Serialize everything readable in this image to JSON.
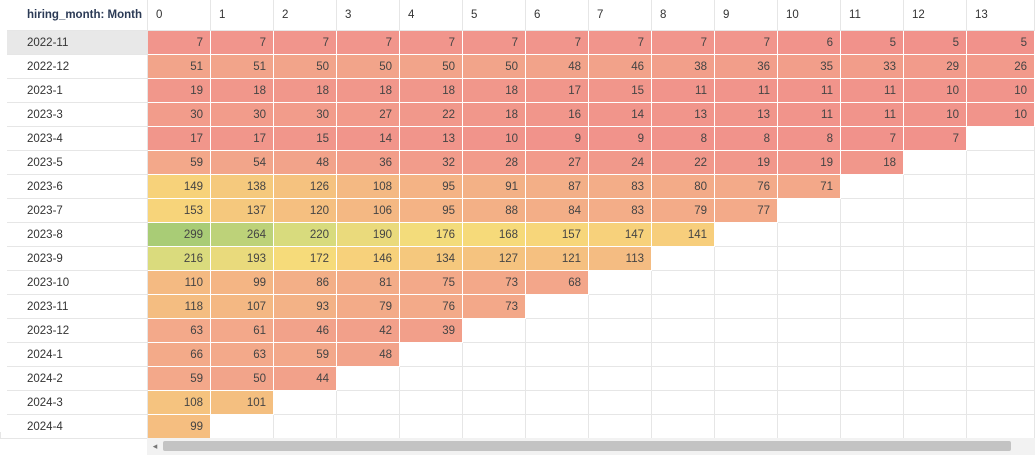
{
  "grid": {
    "corner_label": "hiring_month: Month",
    "columns": [
      "0",
      "1",
      "2",
      "3",
      "4",
      "5",
      "6",
      "7",
      "8",
      "9",
      "10",
      "11",
      "12",
      "13"
    ],
    "selected_row": 0,
    "rows": [
      {
        "label": "2022-11",
        "values": [
          7,
          7,
          7,
          7,
          7,
          7,
          7,
          7,
          7,
          7,
          6,
          5,
          5,
          5
        ],
        "colors": [
          "#f1958c",
          "#f1958c",
          "#f1958c",
          "#f1958c",
          "#f1958c",
          "#f1958c",
          "#f1958c",
          "#f1958c",
          "#f1958c",
          "#f1958c",
          "#f1938b",
          "#f1928b",
          "#f1928b",
          "#f1928b"
        ]
      },
      {
        "label": "2022-12",
        "values": [
          51,
          51,
          50,
          50,
          50,
          50,
          48,
          46,
          38,
          36,
          35,
          33,
          29,
          26
        ],
        "colors": [
          "#f2a48a",
          "#f2a48a",
          "#f2a48a",
          "#f2a48a",
          "#f2a48a",
          "#f2a48a",
          "#f2a38a",
          "#f2a28a",
          "#f29f8a",
          "#f29e8a",
          "#f29e8a",
          "#f29d8a",
          "#f29b8b",
          "#f29a8b"
        ]
      },
      {
        "label": "2023-1",
        "values": [
          19,
          18,
          18,
          18,
          18,
          18,
          17,
          15,
          11,
          11,
          11,
          11,
          10,
          10
        ],
        "colors": [
          "#f1978b",
          "#f1978b",
          "#f1978b",
          "#f1978b",
          "#f1978b",
          "#f1978b",
          "#f1968b",
          "#f1968b",
          "#f1948b",
          "#f1948b",
          "#f1948b",
          "#f1948b",
          "#f1948b",
          "#f1948b"
        ]
      },
      {
        "label": "2023-3",
        "values": [
          30,
          30,
          30,
          27,
          22,
          18,
          16,
          14,
          13,
          13,
          11,
          11,
          10,
          10
        ],
        "colors": [
          "#f29c8b",
          "#f29c8b",
          "#f29c8b",
          "#f29a8b",
          "#f1988b",
          "#f1978b",
          "#f1968b",
          "#f1958b",
          "#f1958b",
          "#f1958b",
          "#f1948b",
          "#f1948b",
          "#f1948b",
          "#f1948b"
        ]
      },
      {
        "label": "2023-4",
        "values": [
          17,
          17,
          15,
          14,
          13,
          10,
          9,
          9,
          8,
          8,
          8,
          7,
          7,
          null
        ],
        "colors": [
          "#f1968b",
          "#f1968b",
          "#f1968b",
          "#f1958b",
          "#f1958b",
          "#f1948b",
          "#f1938b",
          "#f1938b",
          "#f1938b",
          "#f1938b",
          "#f1938b",
          "#f1928b",
          "#f1928b",
          ""
        ]
      },
      {
        "label": "2023-5",
        "values": [
          59,
          54,
          48,
          36,
          32,
          28,
          27,
          24,
          22,
          19,
          19,
          18,
          null,
          null
        ],
        "colors": [
          "#f3a88a",
          "#f2a58a",
          "#f2a38a",
          "#f29e8a",
          "#f29c8b",
          "#f29b8b",
          "#f29a8b",
          "#f1998b",
          "#f1988b",
          "#f1978b",
          "#f1978b",
          "#f1978b",
          "",
          ""
        ]
      },
      {
        "label": "2023-6",
        "values": [
          149,
          138,
          126,
          108,
          95,
          91,
          87,
          83,
          80,
          76,
          71,
          null,
          null,
          null
        ],
        "colors": [
          "#f7d27a",
          "#f5c97d",
          "#f5c27f",
          "#f4b983",
          "#f4b385",
          "#f3b186",
          "#f3af87",
          "#f3ad88",
          "#f3ab88",
          "#f3aa89",
          "#f3a889",
          "",
          "",
          ""
        ]
      },
      {
        "label": "2023-7",
        "values": [
          153,
          137,
          120,
          106,
          95,
          88,
          84,
          83,
          79,
          77,
          null,
          null,
          null,
          null
        ],
        "colors": [
          "#f7d47a",
          "#f5c87d",
          "#f5bf80",
          "#f4b883",
          "#f4b385",
          "#f3b086",
          "#f3ae87",
          "#f3ad88",
          "#f3ab88",
          "#f3aa89",
          "",
          "",
          "",
          ""
        ]
      },
      {
        "label": "2023-8",
        "values": [
          299,
          264,
          220,
          190,
          176,
          168,
          157,
          147,
          141,
          null,
          null,
          null,
          null,
          null
        ],
        "colors": [
          "#a9cc76",
          "#bdd279",
          "#d8db7d",
          "#eada7c",
          "#f3dc7b",
          "#f6da7a",
          "#f7d67a",
          "#f7d17b",
          "#f7ce7c",
          "",
          "",
          "",
          "",
          ""
        ]
      },
      {
        "label": "2023-9",
        "values": [
          216,
          193,
          172,
          146,
          134,
          127,
          121,
          113,
          null,
          null,
          null,
          null,
          null,
          null
        ],
        "colors": [
          "#dadb7d",
          "#e9da7c",
          "#f6db7a",
          "#f7d17b",
          "#f5c87d",
          "#f5c37f",
          "#f5c080",
          "#f4bc82",
          "",
          "",
          "",
          "",
          "",
          ""
        ]
      },
      {
        "label": "2023-10",
        "values": [
          110,
          99,
          86,
          81,
          75,
          73,
          68,
          null,
          null,
          null,
          null,
          null,
          null,
          null
        ],
        "colors": [
          "#f4ba82",
          "#f4b584",
          "#f3af87",
          "#f3ac88",
          "#f3a989",
          "#f3a889",
          "#f3a68a",
          "",
          "",
          "",
          "",
          "",
          "",
          ""
        ]
      },
      {
        "label": "2023-11",
        "values": [
          118,
          107,
          93,
          79,
          76,
          73,
          null,
          null,
          null,
          null,
          null,
          null,
          null,
          null
        ],
        "colors": [
          "#f4bd81",
          "#f4b883",
          "#f3b286",
          "#f3ab88",
          "#f3aa89",
          "#f3a889",
          "",
          "",
          "",
          "",
          "",
          "",
          "",
          ""
        ]
      },
      {
        "label": "2023-12",
        "values": [
          63,
          61,
          46,
          42,
          39,
          null,
          null,
          null,
          null,
          null,
          null,
          null,
          null,
          null
        ],
        "colors": [
          "#f3a98a",
          "#f3a88a",
          "#f2a28a",
          "#f2a08a",
          "#f29f8a",
          "",
          "",
          "",
          "",
          "",
          "",
          "",
          "",
          ""
        ]
      },
      {
        "label": "2024-1",
        "values": [
          66,
          63,
          59,
          48,
          null,
          null,
          null,
          null,
          null,
          null,
          null,
          null,
          null,
          null
        ],
        "colors": [
          "#f3aa89",
          "#f3a98a",
          "#f3a88a",
          "#f2a38a",
          "",
          "",
          "",
          "",
          "",
          "",
          "",
          "",
          "",
          ""
        ]
      },
      {
        "label": "2024-2",
        "values": [
          59,
          50,
          44,
          null,
          null,
          null,
          null,
          null,
          null,
          null,
          null,
          null,
          null,
          null
        ],
        "colors": [
          "#f3a88a",
          "#f2a48a",
          "#f2a18a",
          "",
          "",
          "",
          "",
          "",
          "",
          "",
          "",
          "",
          "",
          ""
        ]
      },
      {
        "label": "2024-3",
        "values": [
          108,
          101,
          null,
          null,
          null,
          null,
          null,
          null,
          null,
          null,
          null,
          null,
          null,
          null
        ],
        "colors": [
          "#f5c37f",
          "#f4bf80",
          "",
          "",
          "",
          "",
          "",
          "",
          "",
          "",
          "",
          "",
          "",
          ""
        ]
      },
      {
        "label": "2024-4",
        "values": [
          99,
          null,
          null,
          null,
          null,
          null,
          null,
          null,
          null,
          null,
          null,
          null,
          null,
          null
        ],
        "colors": [
          "#f5be80",
          "",
          "",
          "",
          "",
          "",
          "",
          "",
          "",
          "",
          "",
          "",
          "",
          ""
        ]
      }
    ]
  },
  "scrollbar": {
    "left_arrow_icon": "chevron-left-icon",
    "left_arrow_glyph": "◂"
  }
}
